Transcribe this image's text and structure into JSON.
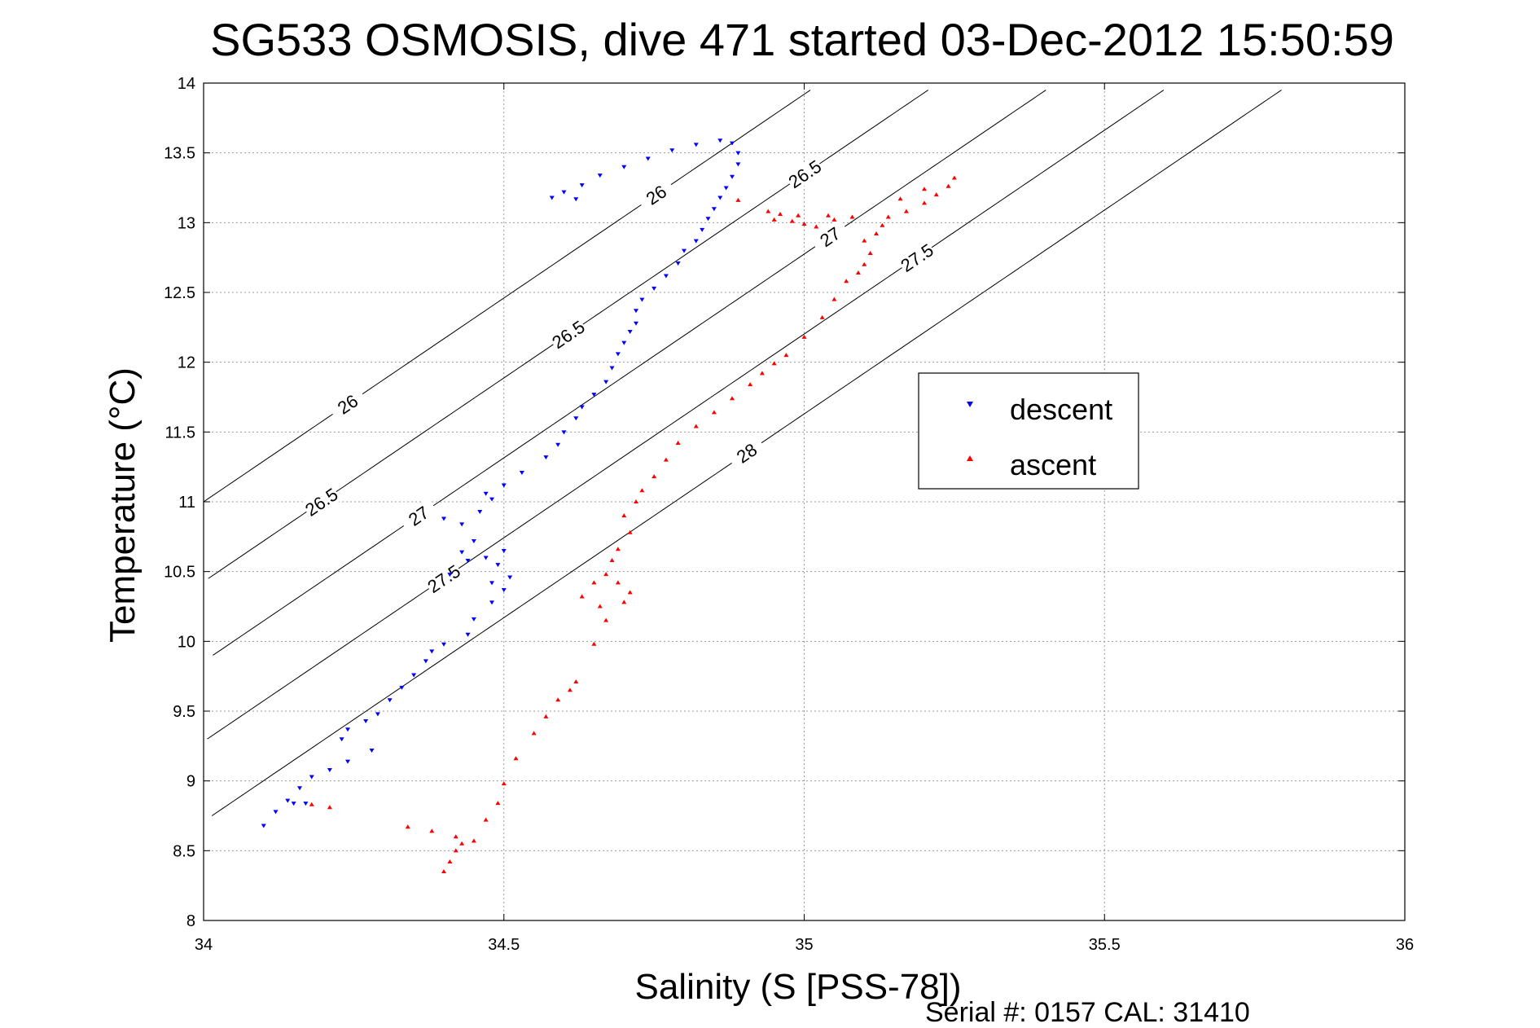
{
  "chart_data": {
    "type": "scatter",
    "title": "SG533 OSMOSIS, dive 471 started 03-Dec-2012 15:50:59",
    "xlabel": "Salinity (S [PSS-78])",
    "ylabel": "Temperature (°C)",
    "xlim": [
      34,
      36
    ],
    "ylim": [
      8,
      14
    ],
    "xticks": [
      "34",
      "34.5",
      "35",
      "35.5",
      "36"
    ],
    "yticks": [
      "8",
      "8.5",
      "9",
      "9.5",
      "10",
      "10.5",
      "11",
      "11.5",
      "12",
      "12.5",
      "13",
      "13.5",
      "14"
    ],
    "grid": true,
    "legend_position": "center-right",
    "footer": "Serial #: 0157  CAL: 31410",
    "series": [
      {
        "name": "descent",
        "marker": "triangle-down",
        "color": "#0000ff",
        "points": [
          [
            34.1,
            8.68
          ],
          [
            34.12,
            8.78
          ],
          [
            34.14,
            8.86
          ],
          [
            34.16,
            8.95
          ],
          [
            34.15,
            8.84
          ],
          [
            34.17,
            8.84
          ],
          [
            34.18,
            9.03
          ],
          [
            34.21,
            9.08
          ],
          [
            34.24,
            9.14
          ],
          [
            34.28,
            9.22
          ],
          [
            34.23,
            9.3
          ],
          [
            34.24,
            9.37
          ],
          [
            34.27,
            9.43
          ],
          [
            34.29,
            9.48
          ],
          [
            34.31,
            9.58
          ],
          [
            34.33,
            9.67
          ],
          [
            34.35,
            9.76
          ],
          [
            34.37,
            9.86
          ],
          [
            34.38,
            9.93
          ],
          [
            34.4,
            9.98
          ],
          [
            34.44,
            10.05
          ],
          [
            34.45,
            10.16
          ],
          [
            34.48,
            10.28
          ],
          [
            34.5,
            10.37
          ],
          [
            34.48,
            10.42
          ],
          [
            34.51,
            10.46
          ],
          [
            34.49,
            10.55
          ],
          [
            34.47,
            10.6
          ],
          [
            34.5,
            10.65
          ],
          [
            34.44,
            10.58
          ],
          [
            34.41,
            10.48
          ],
          [
            34.43,
            10.64
          ],
          [
            34.45,
            10.72
          ],
          [
            34.43,
            10.84
          ],
          [
            34.4,
            10.88
          ],
          [
            34.46,
            10.93
          ],
          [
            34.48,
            11.02
          ],
          [
            34.47,
            11.06
          ],
          [
            34.5,
            11.12
          ],
          [
            34.53,
            11.21
          ],
          [
            34.57,
            11.32
          ],
          [
            34.59,
            11.41
          ],
          [
            34.6,
            11.5
          ],
          [
            34.62,
            11.6
          ],
          [
            34.63,
            11.68
          ],
          [
            34.65,
            11.77
          ],
          [
            34.67,
            11.86
          ],
          [
            34.68,
            11.96
          ],
          [
            34.69,
            12.06
          ],
          [
            34.7,
            12.14
          ],
          [
            34.71,
            12.22
          ],
          [
            34.72,
            12.28
          ],
          [
            34.72,
            12.37
          ],
          [
            34.73,
            12.45
          ],
          [
            34.75,
            12.53
          ],
          [
            34.77,
            12.62
          ],
          [
            34.79,
            12.71
          ],
          [
            34.8,
            12.8
          ],
          [
            34.82,
            12.87
          ],
          [
            34.83,
            12.95
          ],
          [
            34.84,
            13.03
          ],
          [
            34.85,
            13.1
          ],
          [
            34.86,
            13.18
          ],
          [
            34.87,
            13.25
          ],
          [
            34.88,
            13.33
          ],
          [
            34.89,
            13.42
          ],
          [
            34.89,
            13.5
          ],
          [
            34.88,
            13.57
          ],
          [
            34.86,
            13.59
          ],
          [
            34.82,
            13.56
          ],
          [
            34.78,
            13.52
          ],
          [
            34.74,
            13.46
          ],
          [
            34.7,
            13.4
          ],
          [
            34.66,
            13.34
          ],
          [
            34.63,
            13.27
          ],
          [
            34.6,
            13.22
          ],
          [
            34.58,
            13.18
          ],
          [
            34.62,
            13.17
          ]
        ]
      },
      {
        "name": "ascent",
        "marker": "triangle-up",
        "color": "#ff0000",
        "points": [
          [
            34.18,
            8.83
          ],
          [
            34.21,
            8.81
          ],
          [
            34.34,
            8.67
          ],
          [
            34.38,
            8.64
          ],
          [
            34.42,
            8.6
          ],
          [
            34.43,
            8.55
          ],
          [
            34.42,
            8.5
          ],
          [
            34.41,
            8.42
          ],
          [
            34.4,
            8.35
          ],
          [
            34.45,
            8.57
          ],
          [
            34.47,
            8.72
          ],
          [
            34.49,
            8.84
          ],
          [
            34.5,
            8.98
          ],
          [
            34.52,
            9.16
          ],
          [
            34.55,
            9.34
          ],
          [
            34.57,
            9.46
          ],
          [
            34.59,
            9.58
          ],
          [
            34.61,
            9.65
          ],
          [
            34.62,
            9.71
          ],
          [
            34.65,
            9.98
          ],
          [
            34.67,
            10.15
          ],
          [
            34.66,
            10.25
          ],
          [
            34.7,
            10.28
          ],
          [
            34.69,
            10.42
          ],
          [
            34.71,
            10.35
          ],
          [
            34.65,
            10.42
          ],
          [
            34.63,
            10.32
          ],
          [
            34.67,
            10.48
          ],
          [
            34.68,
            10.58
          ],
          [
            34.69,
            10.66
          ],
          [
            34.71,
            10.78
          ],
          [
            34.7,
            10.9
          ],
          [
            34.72,
            11.0
          ],
          [
            34.73,
            11.08
          ],
          [
            34.75,
            11.18
          ],
          [
            34.77,
            11.3
          ],
          [
            34.79,
            11.42
          ],
          [
            34.82,
            11.54
          ],
          [
            34.85,
            11.64
          ],
          [
            34.88,
            11.74
          ],
          [
            34.91,
            11.84
          ],
          [
            34.93,
            11.92
          ],
          [
            34.95,
            11.99
          ],
          [
            34.97,
            12.05
          ],
          [
            35.0,
            12.18
          ],
          [
            35.03,
            12.32
          ],
          [
            35.05,
            12.45
          ],
          [
            35.07,
            12.58
          ],
          [
            35.09,
            12.64
          ],
          [
            35.1,
            12.7
          ],
          [
            35.11,
            12.78
          ],
          [
            35.1,
            12.87
          ],
          [
            35.12,
            12.92
          ],
          [
            35.13,
            12.98
          ],
          [
            35.14,
            13.04
          ],
          [
            35.17,
            13.08
          ],
          [
            35.2,
            13.14
          ],
          [
            35.22,
            13.2
          ],
          [
            35.24,
            13.26
          ],
          [
            35.25,
            13.32
          ],
          [
            35.2,
            13.24
          ],
          [
            35.16,
            13.17
          ],
          [
            34.95,
            13.02
          ],
          [
            34.98,
            13.01
          ],
          [
            35.0,
            12.99
          ],
          [
            35.02,
            12.97
          ],
          [
            35.05,
            13.02
          ],
          [
            35.08,
            13.04
          ],
          [
            34.96,
            13.06
          ],
          [
            34.99,
            13.05
          ],
          [
            35.04,
            13.05
          ],
          [
            34.89,
            13.16
          ],
          [
            34.94,
            13.08
          ]
        ]
      }
    ],
    "isopycnals": [
      {
        "sigma": 26.0,
        "labels": [
          "26",
          "26"
        ]
      },
      {
        "sigma": 26.5,
        "labels": [
          "26.5",
          "26.5",
          "26.5"
        ]
      },
      {
        "sigma": 27.0,
        "labels": [
          "27",
          "27"
        ]
      },
      {
        "sigma": 27.5,
        "labels": [
          "27.5",
          "27.5"
        ]
      },
      {
        "sigma": 28.0,
        "labels": [
          "28"
        ]
      }
    ]
  }
}
